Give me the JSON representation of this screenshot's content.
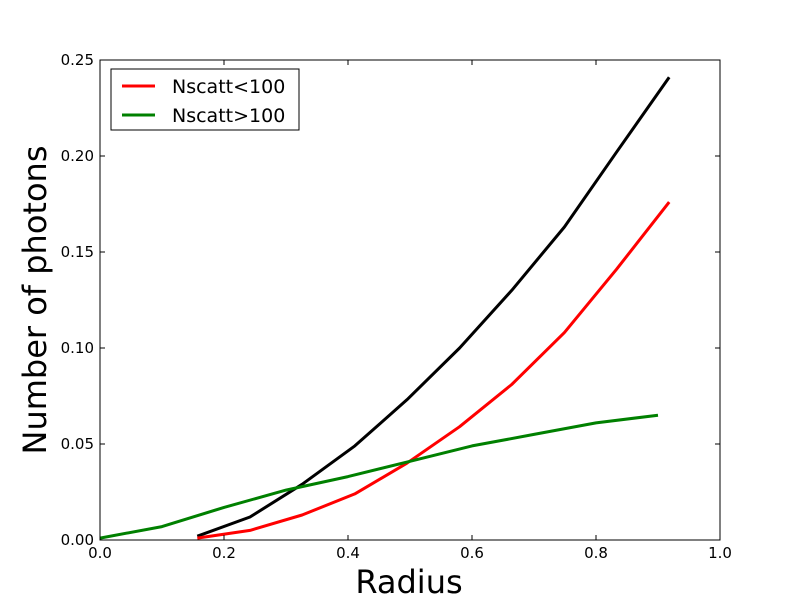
{
  "chart_data": {
    "type": "line",
    "xlabel": "Radius",
    "ylabel": "Number of photons",
    "xlim": [
      0.0,
      1.0
    ],
    "ylim": [
      0.0,
      0.25
    ],
    "xticks": [
      "0.0",
      "0.2",
      "0.4",
      "0.6",
      "0.8",
      "1.0"
    ],
    "yticks": [
      "0.00",
      "0.05",
      "0.10",
      "0.15",
      "0.20",
      "0.25"
    ],
    "grid": false,
    "legend_position": "top-left",
    "series": [
      {
        "color": "#000000",
        "x": [
          0.157,
          0.242,
          0.326,
          0.411,
          0.495,
          0.58,
          0.664,
          0.749,
          0.833,
          0.918
        ],
        "y": [
          0.002,
          0.012,
          0.029,
          0.049,
          0.073,
          0.1,
          0.13,
          0.163,
          0.202,
          0.241
        ]
      },
      {
        "name": "Nscatt<100",
        "color": "#ff0000",
        "x": [
          0.157,
          0.242,
          0.326,
          0.411,
          0.495,
          0.58,
          0.664,
          0.749,
          0.833,
          0.918
        ],
        "y": [
          0.001,
          0.005,
          0.013,
          0.024,
          0.04,
          0.059,
          0.081,
          0.108,
          0.141,
          0.176
        ]
      },
      {
        "name": "Nscatt>100",
        "color": "#008000",
        "x": [
          0.0,
          0.1,
          0.2,
          0.3,
          0.4,
          0.5,
          0.6,
          0.7,
          0.8,
          0.9
        ],
        "y": [
          0.001,
          0.007,
          0.017,
          0.026,
          0.033,
          0.041,
          0.049,
          0.055,
          0.061,
          0.065
        ]
      }
    ]
  }
}
